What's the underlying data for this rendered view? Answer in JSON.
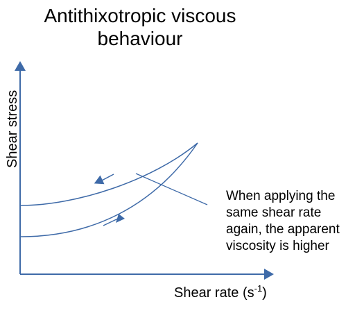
{
  "title_lines": [
    "Antithixotropic viscous",
    "behaviour"
  ],
  "axes": {
    "y_label": "Shear stress",
    "x_label_main": "Shear rate (s",
    "x_label_sup": "-1",
    "x_label_end": ")"
  },
  "annotation_lines": [
    "When applying the",
    "same shear rate",
    "again, the apparent",
    "viscosity is higher"
  ],
  "colors": {
    "axis": "#3e6aa8",
    "curve": "#3e6aa8",
    "text": "#000000"
  }
}
